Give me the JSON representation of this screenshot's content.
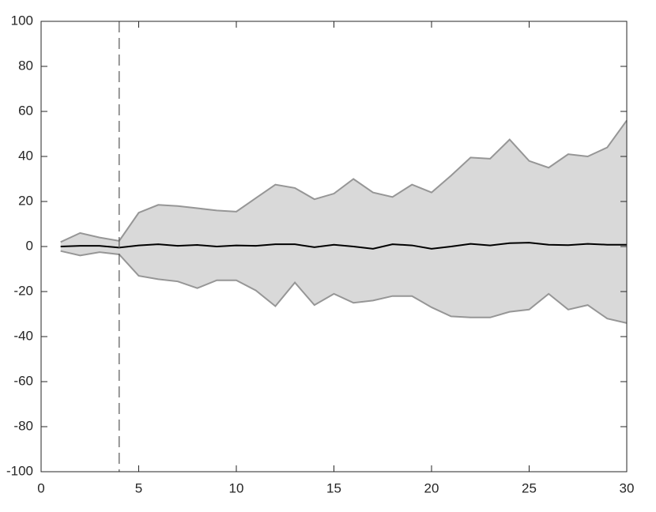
{
  "chart_data": {
    "type": "line",
    "x": [
      1,
      2,
      3,
      4,
      5,
      6,
      7,
      8,
      9,
      10,
      11,
      12,
      13,
      14,
      15,
      16,
      17,
      18,
      19,
      20,
      21,
      22,
      23,
      24,
      25,
      26,
      27,
      28,
      29,
      30
    ],
    "band_upper": [
      2,
      6,
      4,
      2.5,
      15,
      18.5,
      18,
      17,
      16,
      15.5,
      21.5,
      27.5,
      26,
      21,
      23.5,
      30,
      24,
      22,
      27.5,
      24,
      31.5,
      39.5,
      39,
      47.5,
      38,
      35,
      41,
      40,
      44,
      56
    ],
    "band_lower": [
      -2,
      -4,
      -2.5,
      -3.5,
      -13,
      -14.5,
      -15.5,
      -18.5,
      -15,
      -15,
      -19.5,
      -26.5,
      -16,
      -26,
      -21,
      -25,
      -24,
      -22,
      -22,
      -27,
      -31,
      -31.5,
      -31.5,
      -29,
      -28,
      -21,
      -28,
      -26,
      -32,
      -34
    ],
    "band_fill": "#d9d9d9",
    "band_edge": "#969696",
    "values": [
      0,
      0.3,
      0.3,
      -0.5,
      0.5,
      1,
      0.3,
      0.7,
      0,
      0.5,
      0.3,
      1,
      1,
      -0.3,
      0.8,
      0,
      -1,
      1,
      0.5,
      -1,
      0,
      1.2,
      0.5,
      1.5,
      1.7,
      0.8,
      0.6,
      1.2,
      0.8,
      0.8
    ],
    "color": "#000000",
    "vline": 4,
    "xlim": [
      0,
      30
    ],
    "ylim": [
      -100,
      100
    ],
    "xticks": [
      0,
      5,
      10,
      15,
      20,
      25,
      30
    ],
    "yticks": [
      -100,
      -80,
      -60,
      -40,
      -20,
      0,
      20,
      40,
      60,
      80,
      100
    ]
  }
}
